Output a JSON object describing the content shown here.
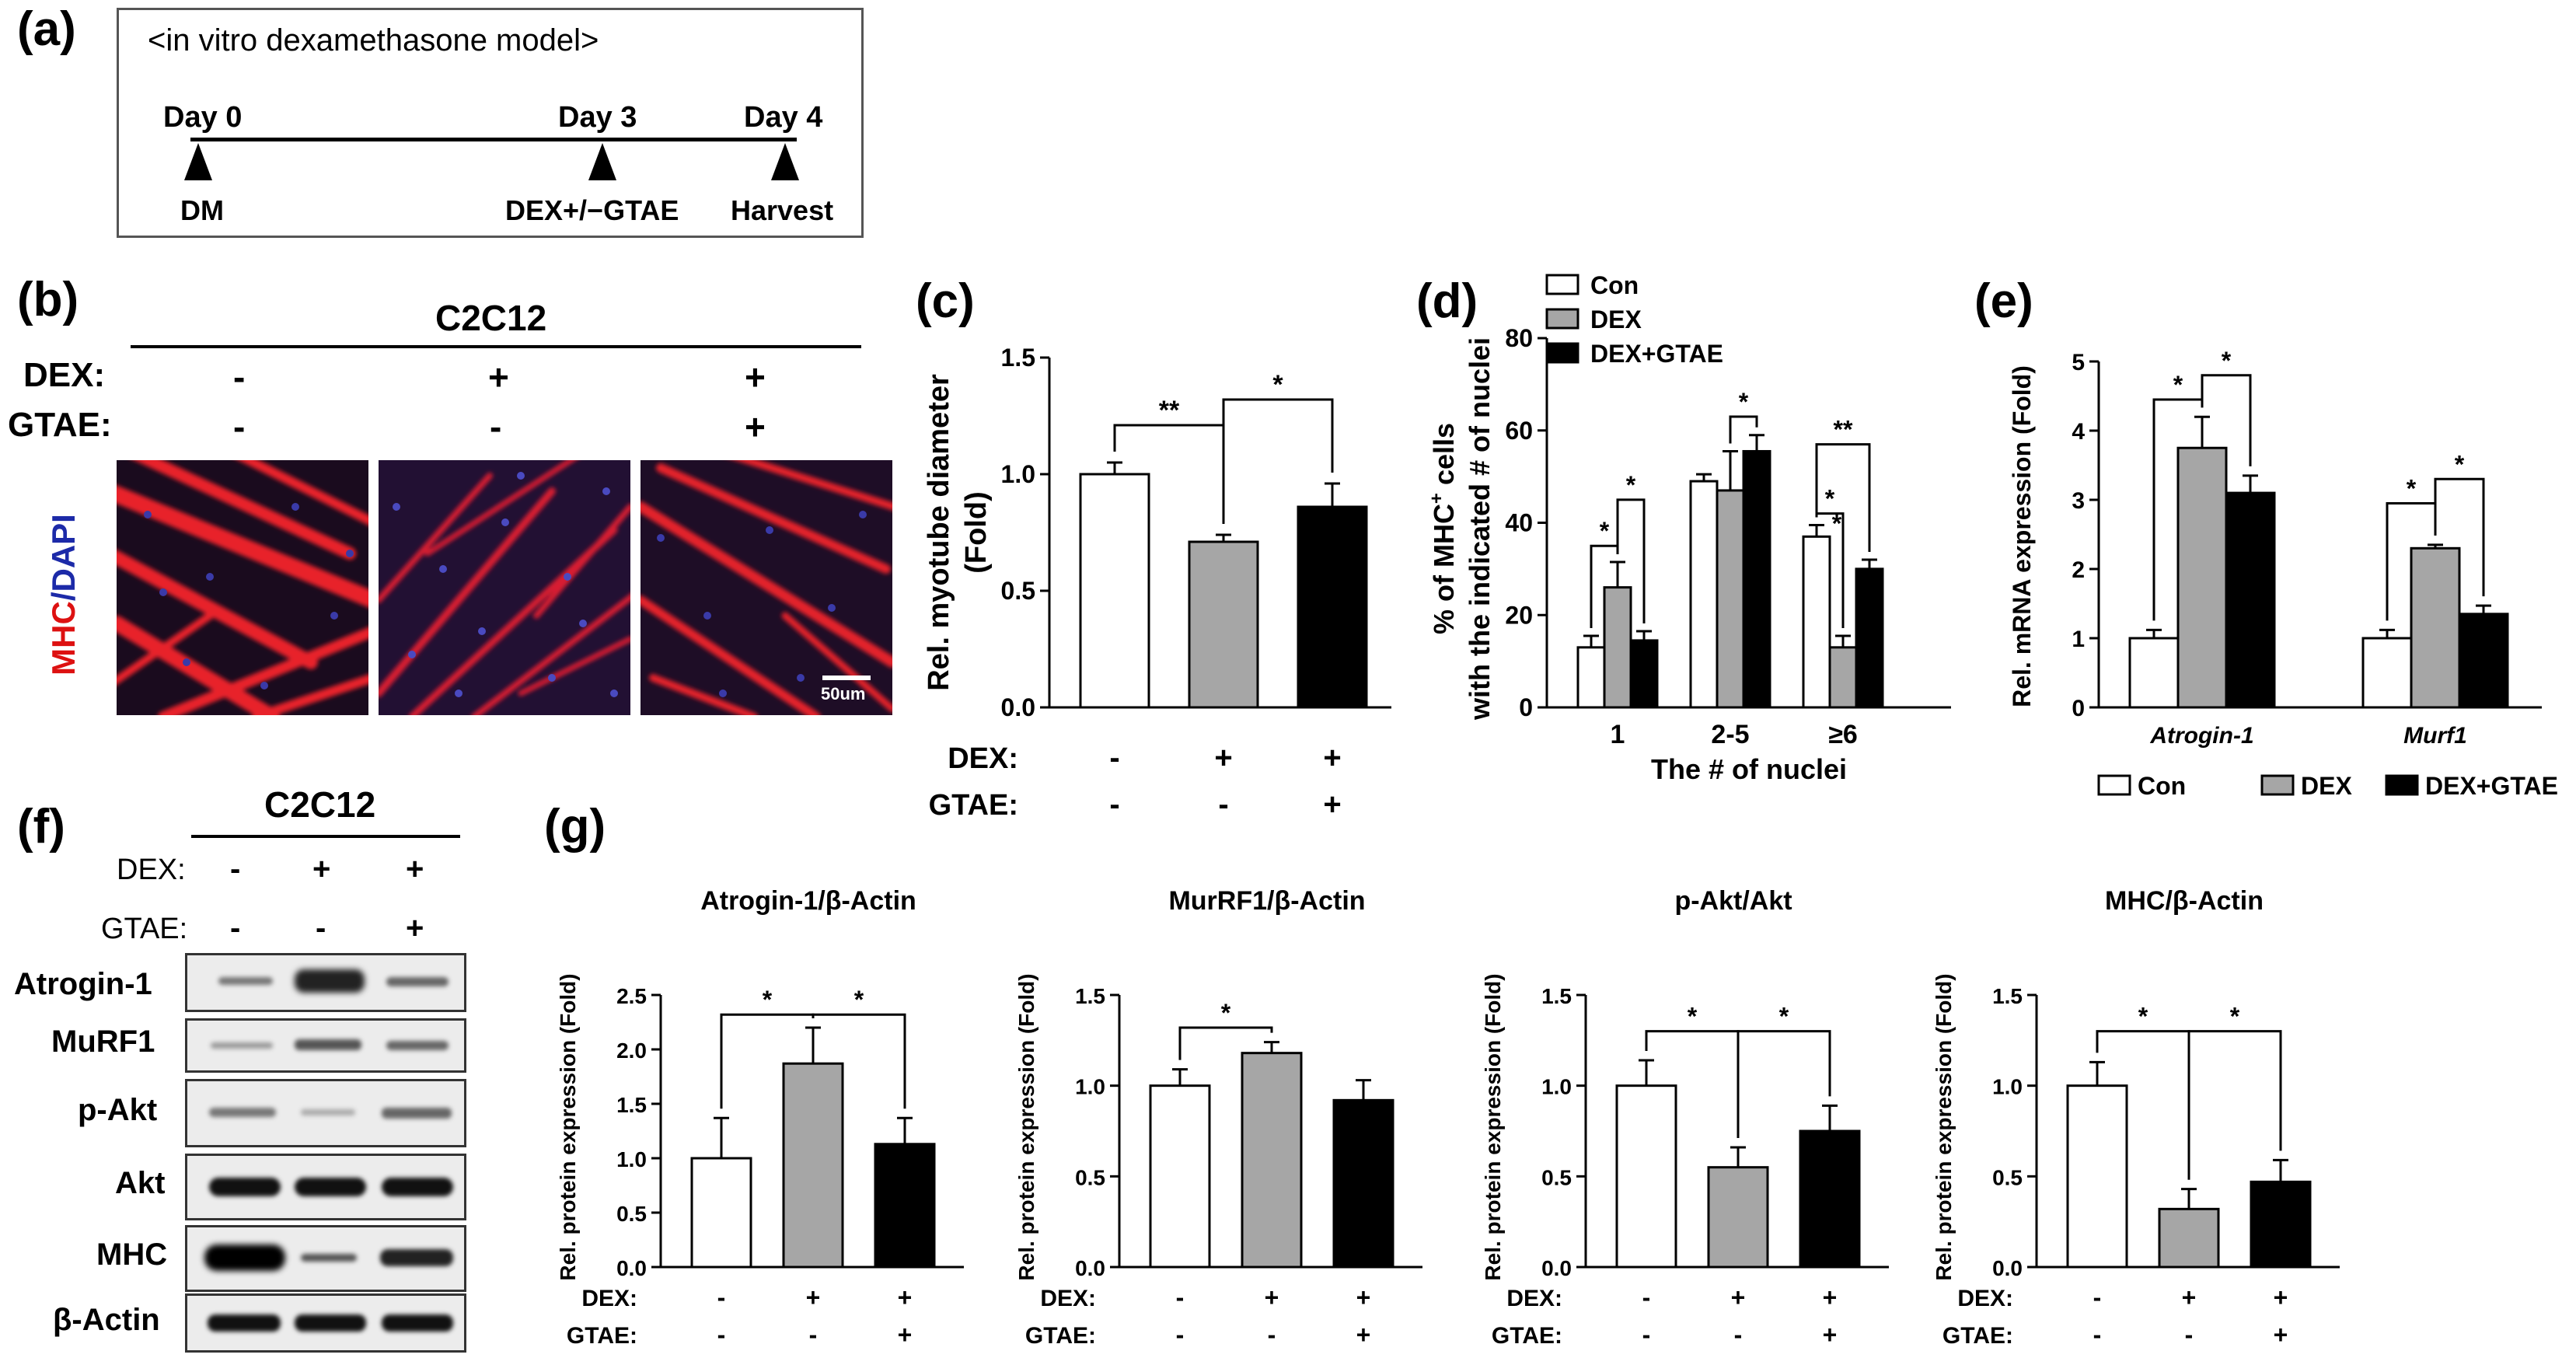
{
  "panels": {
    "a": "(a)",
    "b": "(b)",
    "c": "(c)",
    "d": "(d)",
    "e": "(e)",
    "f": "(f)",
    "g": "(g)"
  },
  "panel_a": {
    "title": "<in vitro dexamethasone model>",
    "days": [
      "Day 0",
      "Day 3",
      "Day 4"
    ],
    "events": [
      "DM",
      "DEX+/−GTAE",
      "Harvest"
    ]
  },
  "panel_b": {
    "cell_line": "C2C12",
    "row_labels": [
      "DEX:",
      "GTAE:"
    ],
    "dex": [
      "-",
      "+",
      "+"
    ],
    "gtae": [
      "-",
      "-",
      "+"
    ],
    "stain_label_1": "MHC",
    "stain_label_2": "/DAPI",
    "scale_bar": "50um",
    "colors": {
      "myotube": "#e8202a",
      "nuclei": "#3a3aa8",
      "background": "#1a0b1e"
    }
  },
  "panel_f": {
    "cell_line": "C2C12",
    "row_labels": [
      "DEX:",
      "GTAE:"
    ],
    "dex": [
      "-",
      "+",
      "+"
    ],
    "gtae": [
      "-",
      "-",
      "+"
    ],
    "bands": [
      "Atrogin-1",
      "MuRF1",
      "p-Akt",
      "Akt",
      "MHC",
      "β-Actin"
    ]
  },
  "colors": {
    "con": "#ffffff",
    "dex": "#a6a6a6",
    "dex_gtae": "#000000"
  },
  "chart_data": [
    {
      "id": "c",
      "type": "bar",
      "ylabel_line1": "Rel. myotube diameter",
      "ylabel_line2": "(Fold)",
      "ylim": [
        0,
        1.5
      ],
      "yticks": [
        "0.0",
        "0.5",
        "1.0",
        "1.5"
      ],
      "groups": [
        "Con",
        "DEX",
        "DEX+GTAE"
      ],
      "values": [
        1.0,
        0.71,
        0.86
      ],
      "errors": [
        0.05,
        0.03,
        0.1
      ],
      "row_labels": [
        "DEX:",
        "GTAE:"
      ],
      "dex": [
        "-",
        "+",
        "+"
      ],
      "gtae": [
        "-",
        "-",
        "+"
      ],
      "sig": [
        "**",
        "*"
      ]
    },
    {
      "id": "d",
      "type": "bar",
      "ylabel_line1": "% of MHC",
      "ylabel_sup": "+",
      "ylabel_line1b": " cells",
      "ylabel_line2": "with the indicated # of nuclei",
      "xlabel": "The # of nuclei",
      "categories": [
        "1",
        "2-5",
        "≥6"
      ],
      "ylim": [
        0,
        80
      ],
      "yticks": [
        "0",
        "20",
        "40",
        "60",
        "80"
      ],
      "legend": [
        "Con",
        "DEX",
        "DEX+GTAE"
      ],
      "series": [
        {
          "name": "Con",
          "values": [
            13,
            49,
            37
          ],
          "errors": [
            2.5,
            1.5,
            2.5
          ]
        },
        {
          "name": "DEX",
          "values": [
            26,
            47,
            13
          ],
          "errors": [
            5.5,
            8.5,
            2.5
          ]
        },
        {
          "name": "DEX+GTAE",
          "values": [
            14.5,
            55.5,
            30
          ],
          "errors": [
            2,
            3.5,
            2
          ]
        }
      ],
      "sig": [
        "*",
        "*",
        "*",
        "*",
        "*",
        "**"
      ]
    },
    {
      "id": "e",
      "type": "bar",
      "ylabel": "Rel. mRNA expression (Fold)",
      "categories": [
        "Atrogin-1",
        "Murf1"
      ],
      "ylim": [
        0,
        5
      ],
      "yticks": [
        "0",
        "1",
        "2",
        "3",
        "4",
        "5"
      ],
      "legend": [
        "Con",
        "DEX",
        "DEX+GTAE"
      ],
      "series": [
        {
          "name": "Con",
          "values": [
            1.0,
            1.0
          ],
          "errors": [
            0.12,
            0.12
          ]
        },
        {
          "name": "DEX",
          "values": [
            3.75,
            2.3
          ],
          "errors": [
            0.45,
            0.05
          ]
        },
        {
          "name": "DEX+GTAE",
          "values": [
            3.1,
            1.35
          ],
          "errors": [
            0.25,
            0.12
          ]
        }
      ],
      "sig": [
        "*",
        "*",
        "*",
        "*"
      ]
    },
    {
      "id": "g1",
      "type": "bar",
      "title": "Atrogin-1/β-Actin",
      "ylabel": "Rel. protein expression (Fold)",
      "ylim": [
        0,
        2.5
      ],
      "yticks": [
        "0.0",
        "0.5",
        "1.0",
        "1.5",
        "2.0",
        "2.5"
      ],
      "values": [
        1.0,
        1.87,
        1.13
      ],
      "errors": [
        0.37,
        0.33,
        0.24
      ],
      "row_labels": [
        "DEX:",
        "GTAE:"
      ],
      "dex": [
        "-",
        "+",
        "+"
      ],
      "gtae": [
        "-",
        "-",
        "+"
      ],
      "sig": [
        "*",
        "*"
      ]
    },
    {
      "id": "g2",
      "type": "bar",
      "title": "MurRF1/β-Actin",
      "ylabel": "Rel. protein expression (Fold)",
      "ylim": [
        0,
        1.5
      ],
      "yticks": [
        "0.0",
        "0.5",
        "1.0",
        "1.5"
      ],
      "values": [
        1.0,
        1.18,
        0.92
      ],
      "errors": [
        0.09,
        0.06,
        0.11
      ],
      "row_labels": [
        "DEX:",
        "GTAE:"
      ],
      "dex": [
        "-",
        "+",
        "+"
      ],
      "gtae": [
        "-",
        "-",
        "+"
      ],
      "sig": [
        "*"
      ]
    },
    {
      "id": "g3",
      "type": "bar",
      "title": "p-Akt/Akt",
      "ylabel": "Rel. protein expression (Fold)",
      "ylim": [
        0,
        1.5
      ],
      "yticks": [
        "0.0",
        "0.5",
        "1.0",
        "1.5"
      ],
      "values": [
        1.0,
        0.55,
        0.75
      ],
      "errors": [
        0.14,
        0.11,
        0.14
      ],
      "row_labels": [
        "DEX:",
        "GTAE:"
      ],
      "dex": [
        "-",
        "+",
        "+"
      ],
      "gtae": [
        "-",
        "-",
        "+"
      ],
      "sig": [
        "*",
        "*"
      ]
    },
    {
      "id": "g4",
      "type": "bar",
      "title": "MHC/β-Actin",
      "ylabel": "Rel. protein expression (Fold)",
      "ylim": [
        0,
        1.5
      ],
      "yticks": [
        "0.0",
        "0.5",
        "1.0",
        "1.5"
      ],
      "values": [
        1.0,
        0.32,
        0.47
      ],
      "errors": [
        0.13,
        0.11,
        0.12
      ],
      "row_labels": [
        "DEX:",
        "GTAE:"
      ],
      "dex": [
        "-",
        "+",
        "+"
      ],
      "gtae": [
        "-",
        "-",
        "+"
      ],
      "sig": [
        "*",
        "*"
      ]
    }
  ]
}
